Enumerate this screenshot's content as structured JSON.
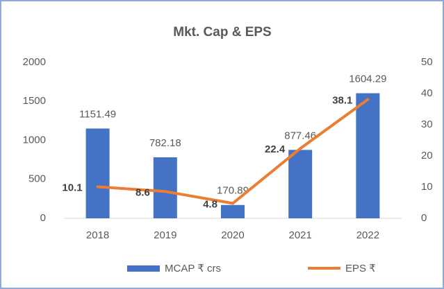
{
  "chart_data": {
    "type": "bar",
    "title": "Mkt. Cap & EPS",
    "categories": [
      "2018",
      "2019",
      "2020",
      "2021",
      "2022"
    ],
    "series": [
      {
        "name": "MCAP ₹ crs",
        "type": "bar",
        "color": "#4472c4",
        "values": [
          1151.49,
          782.18,
          170.89,
          877.46,
          1604.29
        ]
      },
      {
        "name": "EPS ₹",
        "type": "line",
        "axis": "y2",
        "color": "#ed7d31",
        "values": [
          10.1,
          8.6,
          4.8,
          22.4,
          38.1
        ]
      }
    ],
    "ylim": [
      0,
      2000
    ],
    "yticks": [
      0,
      500,
      1000,
      1500,
      2000
    ],
    "y2lim": [
      0,
      50
    ],
    "y2ticks": [
      0,
      10,
      20,
      30,
      40,
      50
    ],
    "grid": false,
    "legend": "bottom"
  }
}
